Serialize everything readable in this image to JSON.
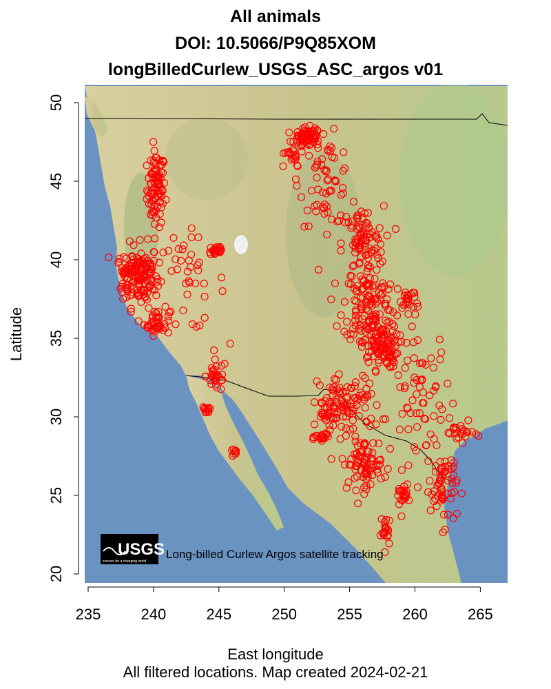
{
  "title": {
    "line1": "All animals",
    "line2": "DOI: 10.5066/P9Q85XOM",
    "line3": "longBilledCurlew_USGS_ASC_argos v01"
  },
  "axes": {
    "xlabel": "East longitude",
    "ylabel": "Latitude",
    "x_ticks": [
      "235",
      "240",
      "245",
      "250",
      "255",
      "260",
      "265"
    ],
    "y_ticks": [
      "20",
      "25",
      "30",
      "35",
      "40",
      "45",
      "50"
    ]
  },
  "footer": "All filtered locations. Map created  2024-02-21",
  "credit": {
    "logo_text": "USGS",
    "logo_tagline": "science for a changing world",
    "caption": "Long-billed Curlew Argos satellite tracking"
  },
  "colors": {
    "points": "#ff0000",
    "ocean": "#6a93c2",
    "land": "#d9cf9e",
    "borders": "#000000"
  },
  "chart_data": {
    "type": "scatter",
    "x_range": [
      234.8,
      267.0
    ],
    "y_range": [
      19.4,
      50.8
    ],
    "point_clusters": [
      {
        "lon": 240.2,
        "lat": 44.5,
        "sx": 0.35,
        "sy": 1.2,
        "n": 90
      },
      {
        "lon": 239.0,
        "lat": 39.0,
        "sx": 0.7,
        "sy": 1.0,
        "n": 130
      },
      {
        "lon": 240.3,
        "lat": 36.0,
        "sx": 0.5,
        "sy": 0.4,
        "n": 40
      },
      {
        "lon": 238.0,
        "lat": 39.3,
        "sx": 0.4,
        "sy": 0.4,
        "n": 30
      },
      {
        "lon": 242.5,
        "lat": 38.5,
        "sx": 1.5,
        "sy": 1.5,
        "n": 40
      },
      {
        "lon": 244.8,
        "lat": 40.6,
        "sx": 0.3,
        "sy": 0.2,
        "n": 25
      },
      {
        "lon": 244.8,
        "lat": 32.6,
        "sx": 0.4,
        "sy": 0.5,
        "n": 30
      },
      {
        "lon": 244.0,
        "lat": 30.4,
        "sx": 0.2,
        "sy": 0.15,
        "n": 12
      },
      {
        "lon": 246.2,
        "lat": 27.7,
        "sx": 0.15,
        "sy": 0.12,
        "n": 8
      },
      {
        "lon": 251.8,
        "lat": 47.8,
        "sx": 0.5,
        "sy": 0.3,
        "n": 70
      },
      {
        "lon": 253.2,
        "lat": 45.0,
        "sx": 1.0,
        "sy": 1.4,
        "n": 60
      },
      {
        "lon": 256.0,
        "lat": 41.0,
        "sx": 0.8,
        "sy": 1.2,
        "n": 90
      },
      {
        "lon": 256.5,
        "lat": 37.2,
        "sx": 1.0,
        "sy": 1.2,
        "n": 120
      },
      {
        "lon": 257.3,
        "lat": 34.5,
        "sx": 0.7,
        "sy": 0.7,
        "n": 110
      },
      {
        "lon": 255.0,
        "lat": 30.8,
        "sx": 1.2,
        "sy": 1.0,
        "n": 90
      },
      {
        "lon": 256.0,
        "lat": 27.0,
        "sx": 0.8,
        "sy": 0.8,
        "n": 80
      },
      {
        "lon": 257.8,
        "lat": 22.7,
        "sx": 0.2,
        "sy": 0.5,
        "n": 20
      },
      {
        "lon": 259.2,
        "lat": 25.0,
        "sx": 0.3,
        "sy": 0.2,
        "n": 20
      },
      {
        "lon": 260.5,
        "lat": 31.0,
        "sx": 1.2,
        "sy": 2.5,
        "n": 80
      },
      {
        "lon": 262.2,
        "lat": 25.5,
        "sx": 0.5,
        "sy": 1.2,
        "n": 60
      },
      {
        "lon": 263.5,
        "lat": 29.0,
        "sx": 0.5,
        "sy": 0.3,
        "n": 20
      },
      {
        "lon": 259.5,
        "lat": 37.5,
        "sx": 0.4,
        "sy": 0.4,
        "n": 20
      },
      {
        "lon": 253.3,
        "lat": 30.2,
        "sx": 0.4,
        "sy": 0.3,
        "n": 25
      },
      {
        "lon": 253.0,
        "lat": 28.7,
        "sx": 0.3,
        "sy": 0.2,
        "n": 20
      },
      {
        "lon": 250.5,
        "lat": 46.5,
        "sx": 0.5,
        "sy": 0.4,
        "n": 20
      }
    ]
  }
}
